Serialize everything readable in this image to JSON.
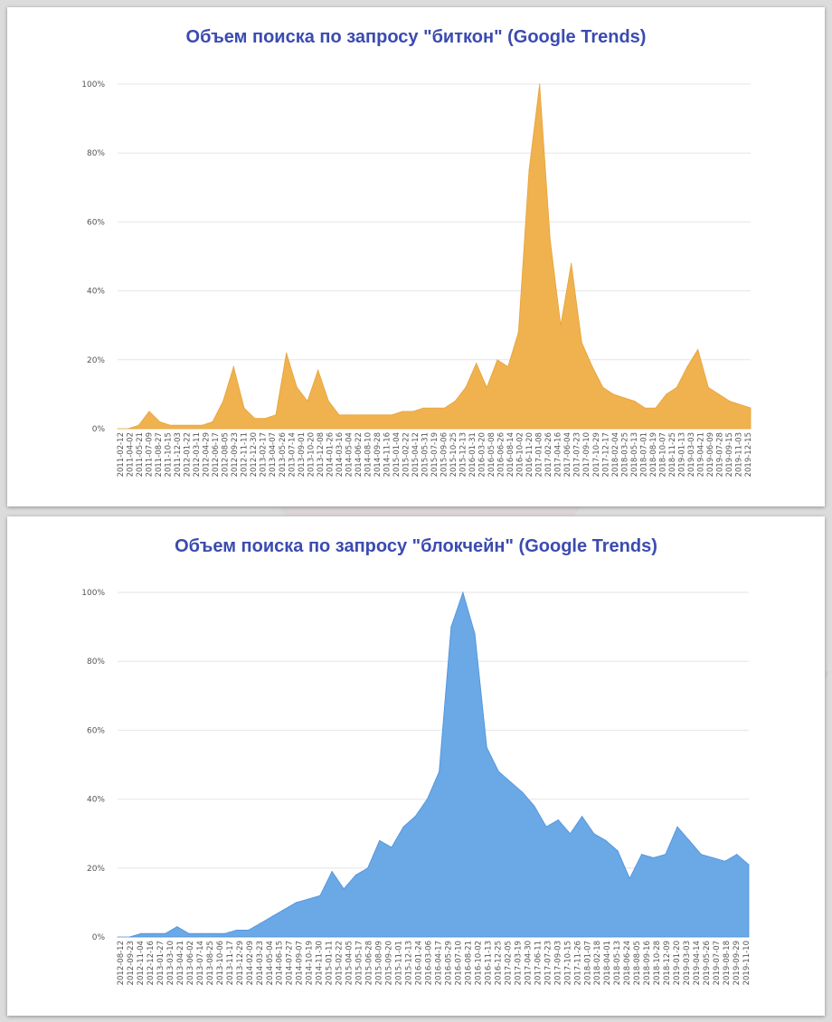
{
  "colors": {
    "title": "#3b4bb0",
    "bitcoin_fill": "#f0b14f",
    "bitcoin_stroke": "#e6a43a",
    "blockchain_fill": "#6aa8e6",
    "blockchain_stroke": "#4d93dc",
    "grid": "#e6e6e6"
  },
  "watermark": {
    "text": "https://t.me/Age_of_Crypt",
    "icon": "logo-circle-icon"
  },
  "chart_data": [
    {
      "type": "area",
      "title": "Объем поиска по запросу \"биткон\" (Google Trends)",
      "xlabel": "",
      "ylabel": "",
      "ylim": [
        0,
        100
      ],
      "yticks": [
        "0%",
        "20%",
        "40%",
        "60%",
        "80%",
        "100%"
      ],
      "grid": true,
      "legend": "none",
      "tick_labels": [
        "2011-02-12",
        "2011-04-02",
        "2011-05-21",
        "2011-07-09",
        "2011-08-27",
        "2011-10-15",
        "2011-12-03",
        "2012-01-22",
        "2012-03-11",
        "2012-04-29",
        "2012-06-17",
        "2012-08-05",
        "2012-09-23",
        "2012-11-11",
        "2012-12-30",
        "2013-02-17",
        "2013-04-07",
        "2013-05-26",
        "2013-07-14",
        "2013-09-01",
        "2013-10-20",
        "2013-12-08",
        "2014-01-26",
        "2014-03-16",
        "2014-05-04",
        "2014-06-22",
        "2014-08-10",
        "2014-09-28",
        "2014-11-16",
        "2015-01-04",
        "2015-02-22",
        "2015-04-12",
        "2015-05-31",
        "2015-07-19",
        "2015-09-06",
        "2015-10-25",
        "2015-12-13",
        "2016-01-31",
        "2016-03-20",
        "2016-05-08",
        "2016-06-26",
        "2016-08-14",
        "2016-10-02",
        "2016-11-20",
        "2017-01-08",
        "2017-02-26",
        "2017-04-16",
        "2017-06-04",
        "2017-07-23",
        "2017-09-10",
        "2017-10-29",
        "2017-12-17",
        "2018-02-04",
        "2018-03-25",
        "2018-05-13",
        "2018-07-01",
        "2018-08-19",
        "2018-10-07",
        "2018-11-25",
        "2019-01-13",
        "2019-03-03",
        "2019-04-21",
        "2019-06-09",
        "2019-07-28",
        "2019-09-15",
        "2019-11-03",
        "2019-12-15"
      ],
      "x": [
        "2011-02",
        "2011-05",
        "2011-06",
        "2011-07",
        "2011-08",
        "2011-10",
        "2012-01",
        "2012-06",
        "2012-12",
        "2013-02",
        "2013-03",
        "2013-04",
        "2013-05",
        "2013-06",
        "2013-08",
        "2013-10",
        "2013-11",
        "2013-12",
        "2014-01",
        "2014-02",
        "2014-03",
        "2014-04",
        "2014-06",
        "2014-09",
        "2015-01",
        "2015-06",
        "2015-12",
        "2016-03",
        "2016-06",
        "2016-09",
        "2016-12",
        "2017-03",
        "2017-05",
        "2017-06",
        "2017-07",
        "2017-08",
        "2017-09",
        "2017-10",
        "2017-11",
        "2017-12a",
        "2017-12b",
        "2018-01a",
        "2018-01b",
        "2018-02",
        "2018-03",
        "2018-04",
        "2018-05",
        "2018-06",
        "2018-08",
        "2018-10",
        "2018-12",
        "2019-02",
        "2019-04",
        "2019-05",
        "2019-06",
        "2019-07",
        "2019-08",
        "2019-09",
        "2019-10",
        "2019-11",
        "2019-12"
      ],
      "values": [
        0,
        0,
        1,
        5,
        2,
        1,
        1,
        1,
        1,
        2,
        8,
        18,
        6,
        3,
        3,
        4,
        22,
        12,
        8,
        17,
        8,
        4,
        4,
        4,
        4,
        4,
        4,
        5,
        5,
        6,
        6,
        6,
        8,
        12,
        19,
        12,
        20,
        18,
        28,
        75,
        100,
        55,
        30,
        48,
        25,
        18,
        12,
        10,
        9,
        8,
        6,
        6,
        10,
        12,
        18,
        23,
        12,
        10,
        8,
        7,
        6
      ]
    },
    {
      "type": "area",
      "title": "Объем поиска по запросу \"блокчейн\" (Google Trends)",
      "xlabel": "",
      "ylabel": "",
      "ylim": [
        0,
        100
      ],
      "yticks": [
        "0%",
        "20%",
        "40%",
        "60%",
        "80%",
        "100%"
      ],
      "grid": true,
      "legend": "none",
      "tick_labels": [
        "2012-08-12",
        "2012-09-23",
        "2012-11-04",
        "2012-12-16",
        "2013-01-27",
        "2013-03-10",
        "2013-04-21",
        "2013-06-02",
        "2013-07-14",
        "2013-08-25",
        "2013-10-06",
        "2013-11-17",
        "2013-12-29",
        "2014-02-09",
        "2014-03-23",
        "2014-05-04",
        "2014-06-15",
        "2014-07-27",
        "2014-09-07",
        "2014-10-19",
        "2014-11-30",
        "2015-01-11",
        "2015-02-22",
        "2015-04-05",
        "2015-05-17",
        "2015-06-28",
        "2015-08-09",
        "2015-09-20",
        "2015-11-01",
        "2015-12-13",
        "2016-01-24",
        "2016-03-06",
        "2016-04-17",
        "2016-05-29",
        "2016-07-10",
        "2016-08-21",
        "2016-10-02",
        "2016-11-13",
        "2016-12-25",
        "2017-02-05",
        "2017-03-19",
        "2017-04-30",
        "2017-06-11",
        "2017-07-23",
        "2017-09-03",
        "2017-10-15",
        "2017-11-26",
        "2018-01-07",
        "2018-02-18",
        "2018-04-01",
        "2018-05-13",
        "2018-06-24",
        "2018-08-05",
        "2018-09-16",
        "2018-10-28",
        "2018-12-09",
        "2019-01-20",
        "2019-03-03",
        "2019-04-14",
        "2019-05-26",
        "2019-07-07",
        "2019-08-18",
        "2019-09-29",
        "2019-11-10"
      ],
      "x": [
        "2012-08",
        "2013-01",
        "2013-03",
        "2013-06",
        "2013-10",
        "2013-12",
        "2014-03",
        "2014-06",
        "2014-09",
        "2014-12",
        "2015-03",
        "2015-06",
        "2015-09",
        "2015-12",
        "2016-03",
        "2016-06",
        "2016-09",
        "2016-11",
        "2016-12",
        "2017-02",
        "2017-04",
        "2017-05",
        "2017-06",
        "2017-07",
        "2017-08",
        "2017-09",
        "2017-10",
        "2017-11",
        "2017-12a",
        "2017-12b",
        "2018-01a",
        "2018-01b",
        "2018-02",
        "2018-03",
        "2018-04",
        "2018-05",
        "2018-06",
        "2018-07",
        "2018-08",
        "2018-09",
        "2018-10",
        "2018-11",
        "2018-12",
        "2019-01",
        "2019-02",
        "2019-03",
        "2019-04",
        "2019-05",
        "2019-06",
        "2019-07",
        "2019-08",
        "2019-09",
        "2019-10",
        "2019-11"
      ],
      "values": [
        0,
        0,
        1,
        1,
        1,
        3,
        1,
        1,
        1,
        1,
        2,
        2,
        4,
        6,
        8,
        10,
        11,
        12,
        19,
        14,
        18,
        20,
        28,
        26,
        32,
        35,
        40,
        48,
        90,
        100,
        88,
        55,
        48,
        45,
        42,
        38,
        32,
        34,
        30,
        35,
        30,
        28,
        25,
        17,
        24,
        23,
        24,
        32,
        28,
        24,
        23,
        22,
        24,
        21
      ]
    }
  ]
}
